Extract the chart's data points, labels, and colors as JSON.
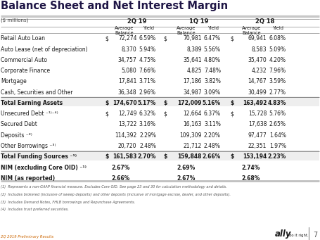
{
  "title": "Balance Sheet and Net Interest Margin",
  "subtitle": "($ millions)",
  "periods": [
    "2Q 19",
    "1Q 19",
    "2Q 18"
  ],
  "rows": [
    {
      "label": "Retail Auto Loan",
      "bold": false,
      "dollar": true,
      "sep_above": false,
      "values": [
        "72,274",
        "6.59%",
        "70,981",
        "6.47%",
        "69,941",
        "6.08%"
      ]
    },
    {
      "label": "Auto Lease (net of depreciation)",
      "bold": false,
      "dollar": false,
      "sep_above": false,
      "values": [
        "8,370",
        "5.94%",
        "8,389",
        "5.56%",
        "8,583",
        "5.09%"
      ]
    },
    {
      "label": "Commercial Auto",
      "bold": false,
      "dollar": false,
      "sep_above": false,
      "values": [
        "34,757",
        "4.75%",
        "35,641",
        "4.80%",
        "35,470",
        "4.20%"
      ]
    },
    {
      "label": "Corporate Finance",
      "bold": false,
      "dollar": false,
      "sep_above": false,
      "values": [
        "5,080",
        "7.66%",
        "4,825",
        "7.48%",
        "4,232",
        "7.96%"
      ]
    },
    {
      "label": "Mortgage",
      "bold": false,
      "dollar": false,
      "sep_above": false,
      "values": [
        "17,841",
        "3.71%",
        "17,186",
        "3.82%",
        "14,767",
        "3.59%"
      ]
    },
    {
      "label": "Cash, Securities and Other",
      "bold": false,
      "dollar": false,
      "sep_above": false,
      "values": [
        "36,348",
        "2.96%",
        "34,987",
        "3.09%",
        "30,499",
        "2.77%"
      ]
    },
    {
      "label": "Total Earning Assets",
      "bold": true,
      "dollar": true,
      "sep_above": true,
      "values": [
        "174,670",
        "5.17%",
        "172,009",
        "5.16%",
        "163,492",
        "4.83%"
      ]
    },
    {
      "label": "Unsecured Debt ⁻¹⁾⁻⁴⁾",
      "bold": false,
      "dollar": true,
      "sep_above": false,
      "values": [
        "12,749",
        "6.32%",
        "12,664",
        "6.37%",
        "15,728",
        "5.76%"
      ]
    },
    {
      "label": "Secured Debt",
      "bold": false,
      "dollar": false,
      "sep_above": false,
      "values": [
        "13,722",
        "3.16%",
        "16,163",
        "3.11%",
        "17,638",
        "2.65%"
      ]
    },
    {
      "label": "Deposits ⁻²⁾",
      "bold": false,
      "dollar": false,
      "sep_above": false,
      "values": [
        "114,392",
        "2.29%",
        "109,309",
        "2.20%",
        "97,477",
        "1.64%"
      ]
    },
    {
      "label": "Other Borrowings ⁻³⁾",
      "bold": false,
      "dollar": false,
      "sep_above": false,
      "values": [
        "20,720",
        "2.48%",
        "21,712",
        "2.48%",
        "22,351",
        "1.97%"
      ]
    },
    {
      "label": "Total Funding Sources ⁻¹⁾",
      "bold": true,
      "dollar": true,
      "sep_above": true,
      "values": [
        "161,583",
        "2.70%",
        "159,848",
        "2.66%",
        "153,194",
        "2.23%"
      ]
    },
    {
      "label": "NIM (excluding Core OID) ⁻¹⁾",
      "bold": true,
      "dollar": false,
      "sep_above": false,
      "values": [
        "2.67%",
        "",
        "2.69%",
        "",
        "2.74%",
        ""
      ]
    },
    {
      "label": "NIM (as reported)",
      "bold": true,
      "dollar": false,
      "sep_above": false,
      "values": [
        "2.66%",
        "",
        "2.67%",
        "",
        "2.68%",
        ""
      ]
    }
  ],
  "footnotes": [
    "(1)  Represents a non-GAAP financial measure. Excludes Core OID. See page 23 and 30 for calculation methodology and details.",
    "(2)  Includes brokered (inclusive of sweep deposits) and other deposits (inclusive of mortgage escrow, dealer, and other deposits).",
    "(3)  Includes Demand Notes, FHLB borrowings and Repurchase Agreements.",
    "(4)  Includes trust preferred securities."
  ],
  "footer_left": "2Q 2019 Preliminary Results",
  "page_num": "7",
  "bg_color": "#ffffff",
  "title_color": "#1f1646",
  "gray_line_color": "#b0b0b0",
  "light_line_color": "#cccccc",
  "bold_bg_color": "#eeeeee",
  "footnote_color": "#555555",
  "footer_orange": "#cc6600"
}
